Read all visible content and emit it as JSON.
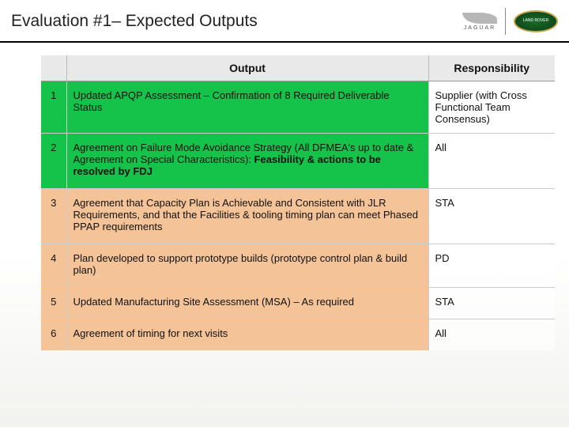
{
  "title": "Evaluation #1– Expected Outputs",
  "logos": {
    "jaguar": "JAGUAR",
    "landrover": "LAND ROVER"
  },
  "colors": {
    "green": "#15c24a",
    "orange": "#f5c398",
    "header_bg": "#e9e9e9"
  },
  "table": {
    "headers": {
      "num": "",
      "output": "Output",
      "responsibility": "Responsibility"
    },
    "rows": [
      {
        "num": "1",
        "bg": "green",
        "output_plain": "Updated APQP Assessment  – Confirmation of 8 Required Deliverable Status",
        "output_bold": "",
        "responsibility": "Supplier (with Cross Functional Team Consensus)"
      },
      {
        "num": "2",
        "bg": "green",
        "output_plain": "Agreement on Failure Mode Avoidance Strategy (All DFMEA's up to date & Agreement on Special Characteristics): ",
        "output_bold": "Feasibility & actions to be resolved by FDJ",
        "responsibility": "All"
      },
      {
        "num": "3",
        "bg": "orange",
        "output_plain": "Agreement that Capacity Plan is Achievable and Consistent with JLR Requirements, and that the Facilities & tooling timing plan can meet Phased PPAP requirements",
        "output_bold": "",
        "responsibility": "STA"
      },
      {
        "num": "4",
        "bg": "orange",
        "output_plain": "Plan developed to support prototype builds (prototype control plan & build plan)",
        "output_bold": "",
        "responsibility": "PD"
      },
      {
        "num": "5",
        "bg": "orange",
        "output_plain": "Updated Manufacturing Site Assessment (MSA) – As required",
        "output_bold": "",
        "responsibility": "STA"
      },
      {
        "num": "6",
        "bg": "orange",
        "output_plain": "Agreement of timing for next visits",
        "output_bold": "",
        "responsibility": "All"
      }
    ]
  }
}
